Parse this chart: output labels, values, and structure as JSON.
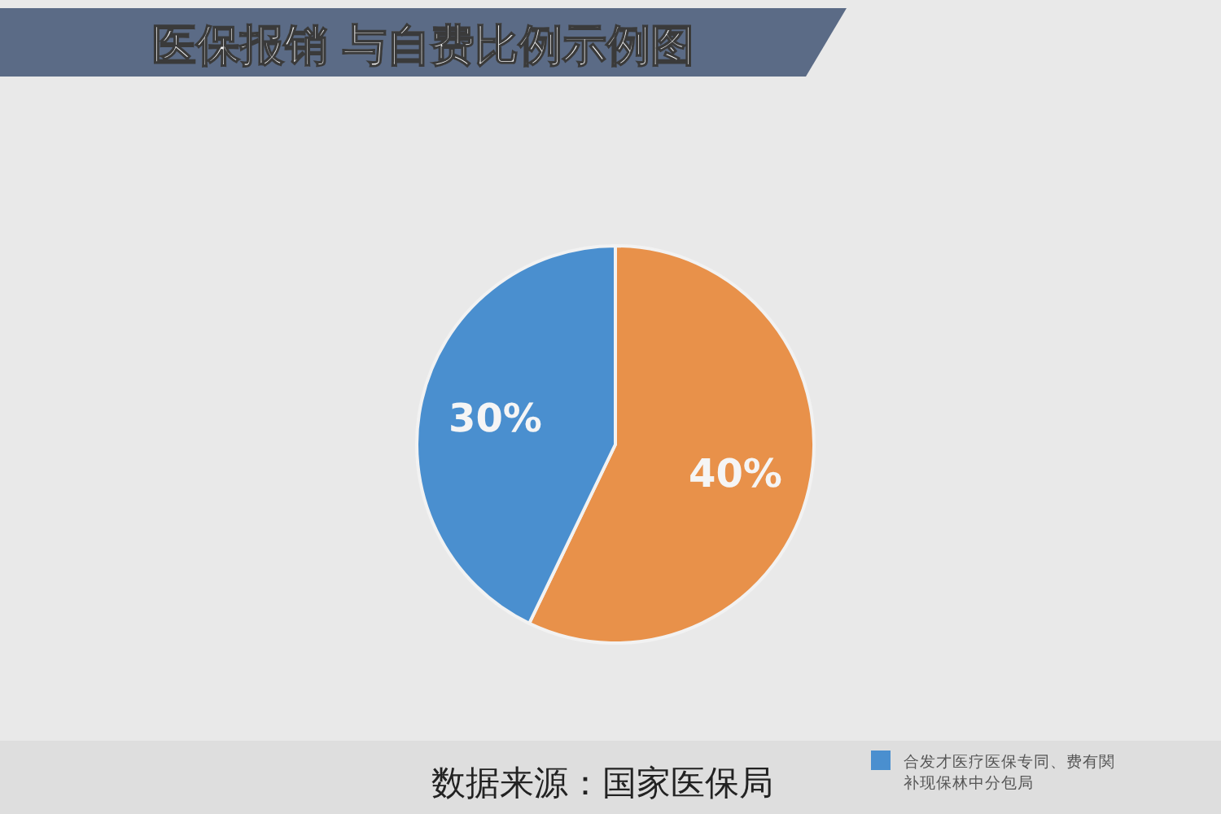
{
  "chart_data": {
    "type": "pie",
    "title": "医保报销 与自费比例示例图",
    "categories": [
      null,
      "合发才医疗医保专同、费有関补现保林中分包局"
    ],
    "values": [
      40,
      30
    ],
    "colors": [
      "#e8914a",
      "#4a8fcf"
    ],
    "value_labels": [
      "40%",
      "30%"
    ],
    "legend": "bottom right",
    "annotations": [
      "数据来源：国家医保局"
    ]
  }
}
